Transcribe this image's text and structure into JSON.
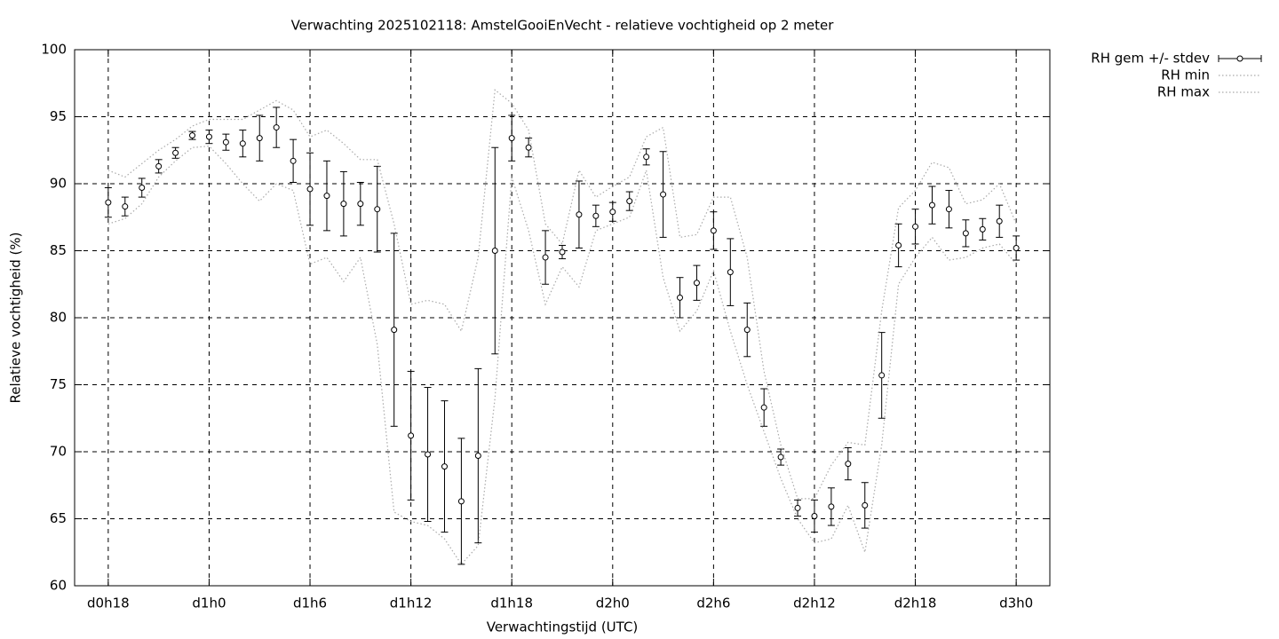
{
  "chart_data": {
    "type": "errorbar-line",
    "title": "Verwachting 2025102118: AmstelGooiEnVecht - relatieve vochtigheid op 2 meter",
    "x_label": "Verwachtingstijd (UTC)",
    "y_label": "Relatieve vochtigheid (%)",
    "x": [
      18,
      19,
      20,
      21,
      22,
      23,
      24,
      25,
      26,
      27,
      28,
      29,
      30,
      31,
      32,
      33,
      34,
      35,
      36,
      37,
      38,
      39,
      40,
      41,
      42,
      43,
      44,
      45,
      46,
      47,
      48,
      49,
      50,
      51,
      52,
      53,
      54,
      55,
      56,
      57,
      58,
      59,
      60,
      61,
      62,
      63,
      64,
      65,
      66,
      67,
      68,
      69,
      70,
      71,
      72
    ],
    "xlim": [
      16,
      74
    ],
    "xticks": [
      {
        "value": 18,
        "label": "d0h18"
      },
      {
        "value": 24,
        "label": "d1h0"
      },
      {
        "value": 30,
        "label": "d1h6"
      },
      {
        "value": 36,
        "label": "d1h12"
      },
      {
        "value": 42,
        "label": "d1h18"
      },
      {
        "value": 48,
        "label": "d2h0"
      },
      {
        "value": 54,
        "label": "d2h6"
      },
      {
        "value": 60,
        "label": "d2h12"
      },
      {
        "value": 66,
        "label": "d2h18"
      },
      {
        "value": 72,
        "label": "d3h0"
      }
    ],
    "ylim": [
      60,
      100
    ],
    "yticks": [
      60,
      65,
      70,
      75,
      80,
      85,
      90,
      95,
      100
    ],
    "grid": true,
    "legend": "outside-top-right",
    "series": [
      {
        "name": "RH gem +/- stdev",
        "color": "#000000",
        "style": "errorbars",
        "values": [
          88.6,
          88.3,
          89.7,
          91.3,
          92.3,
          93.6,
          93.5,
          93.1,
          93.0,
          93.4,
          94.2,
          91.7,
          89.6,
          89.1,
          88.5,
          88.5,
          88.1,
          79.1,
          71.2,
          69.8,
          68.9,
          66.3,
          69.7,
          85.0,
          93.4,
          92.7,
          84.5,
          84.9,
          87.7,
          87.6,
          87.9,
          88.7,
          92.0,
          89.2,
          81.5,
          82.6,
          86.5,
          83.4,
          79.1,
          73.3,
          69.6,
          65.8,
          65.2,
          65.9,
          69.1,
          66.0,
          75.7,
          85.4,
          86.8,
          88.4,
          88.1,
          86.3,
          86.6,
          87.2,
          85.2
        ],
        "errors": [
          1.1,
          0.7,
          0.7,
          0.5,
          0.4,
          0.3,
          0.5,
          0.6,
          1.0,
          1.7,
          1.5,
          1.6,
          2.7,
          2.6,
          2.4,
          1.6,
          3.2,
          7.2,
          4.8,
          5.0,
          4.9,
          4.7,
          6.5,
          7.7,
          1.7,
          0.7,
          2.0,
          0.5,
          2.5,
          0.8,
          0.7,
          0.7,
          0.6,
          3.2,
          1.5,
          1.3,
          1.4,
          2.5,
          2.0,
          1.4,
          0.6,
          0.6,
          1.2,
          1.4,
          1.2,
          1.7,
          3.2,
          1.6,
          1.3,
          1.4,
          1.4,
          1.0,
          0.8,
          1.2,
          0.9
        ]
      },
      {
        "name": "RH min",
        "color": "#aaaaaa",
        "style": "dotted",
        "values": [
          87.0,
          87.4,
          88.5,
          90.5,
          91.7,
          92.7,
          92.8,
          91.5,
          90.0,
          88.7,
          90.0,
          89.5,
          84.0,
          84.5,
          82.7,
          84.5,
          78.0,
          65.5,
          64.8,
          64.5,
          63.5,
          61.6,
          63.0,
          74.0,
          90.5,
          86.5,
          81.0,
          83.8,
          82.3,
          86.5,
          87.0,
          87.5,
          91.0,
          83.0,
          79.0,
          80.5,
          83.5,
          79.0,
          75.0,
          71.5,
          68.0,
          65.0,
          63.2,
          63.5,
          66.0,
          62.5,
          70.5,
          82.5,
          84.5,
          86.0,
          84.3,
          84.5,
          85.2,
          85.5,
          84.0
        ]
      },
      {
        "name": "RH max",
        "color": "#aaaaaa",
        "style": "dotted",
        "values": [
          91.0,
          90.5,
          91.5,
          92.5,
          93.3,
          94.3,
          94.8,
          94.8,
          94.8,
          95.5,
          96.2,
          95.5,
          93.5,
          94.0,
          93.0,
          91.8,
          91.8,
          87.0,
          81.0,
          81.3,
          81.0,
          79.0,
          84.5,
          97.0,
          96.0,
          94.0,
          87.0,
          85.5,
          91.0,
          89.0,
          89.8,
          90.5,
          93.5,
          94.2,
          86.0,
          86.2,
          89.0,
          89.0,
          84.5,
          76.0,
          70.5,
          66.5,
          66.5,
          69.0,
          70.7,
          70.5,
          80.5,
          88.2,
          89.5,
          91.6,
          91.2,
          88.5,
          88.8,
          90.0,
          87.0
        ]
      }
    ]
  }
}
